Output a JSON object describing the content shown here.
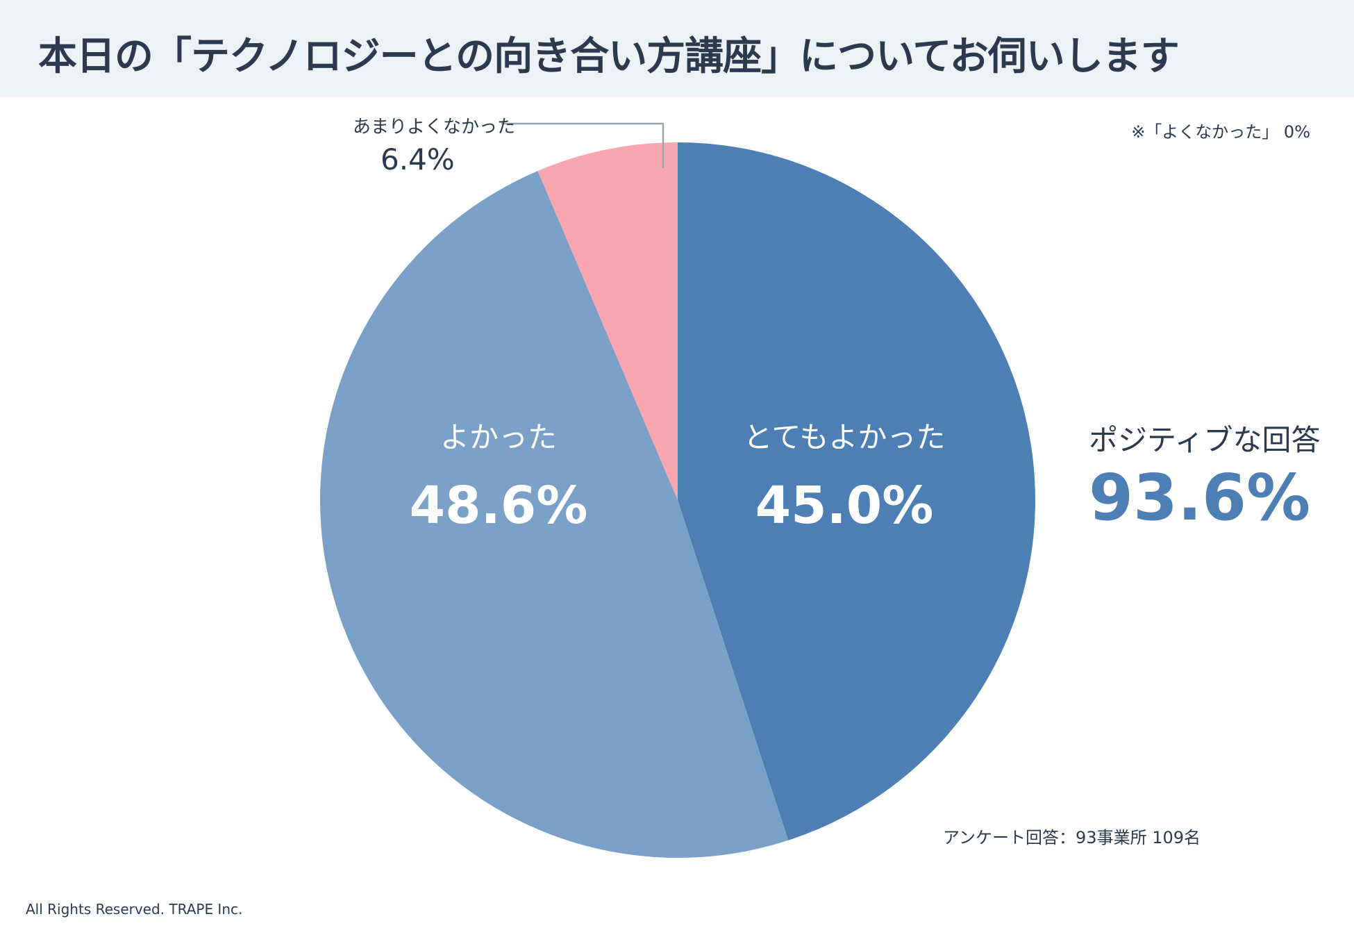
{
  "header": {
    "title": "本日の「テクノロジーとの向き合い方講座」についてお伺いします"
  },
  "note_top": "※「よくなかった」 0%",
  "callout": {
    "label": "あまりよくなかった",
    "value": "6.4%"
  },
  "positive": {
    "label": "ポジティブな回答",
    "value": "93.6%"
  },
  "survey_note": "アンケート回答：93事業所 109名",
  "footer": "All Rights Reserved. TRAPE Inc.",
  "colors": {
    "very_good": "#4d7fb5",
    "good": "#7ba0c8",
    "not_so_good": "#f9a6b0",
    "leader": "#9aa3ad"
  },
  "chart_data": {
    "type": "pie",
    "title": "本日の「テクノロジーとの向き合い方講座」についてお伺いします",
    "start": "12 o'clock",
    "direction": "clockwise",
    "slices": [
      {
        "label": "とてもよかった",
        "value": 45.0,
        "display": "45.0%",
        "color": "#4d7fb5"
      },
      {
        "label": "よかった",
        "value": 48.6,
        "display": "48.6%",
        "color": "#7ba0c8"
      },
      {
        "label": "あまりよくなかった",
        "value": 6.4,
        "display": "6.4%",
        "color": "#f9a6b0"
      },
      {
        "label": "よくなかった",
        "value": 0,
        "display": "0%",
        "color": "#cccccc"
      }
    ]
  }
}
